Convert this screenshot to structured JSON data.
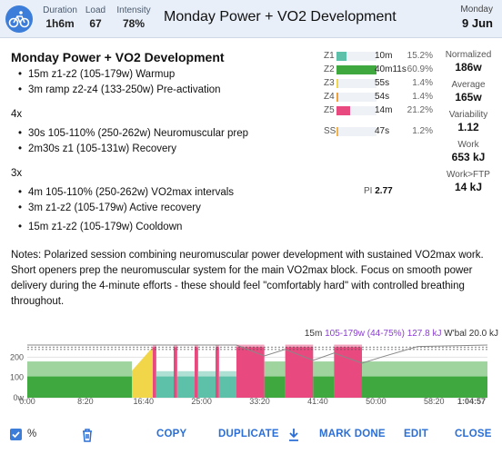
{
  "header": {
    "duration_label": "Duration",
    "duration_value": "1h6m",
    "load_label": "Load",
    "load_value": "67",
    "intensity_label": "Intensity",
    "intensity_value": "78%",
    "title": "Monday Power + VO2 Development",
    "day": "Monday",
    "date": "9 Jun"
  },
  "workout": {
    "title": "Monday Power + VO2 Development",
    "warmup": [
      "15m z1-z2 (105-179w) Warmup",
      "3m ramp z2-z4 (133-250w) Pre-activation"
    ],
    "set1_reps": "4x",
    "set1": [
      "30s 105-110% (250-262w) Neuromuscular prep",
      "2m30s z1 (105-131w) Recovery"
    ],
    "set2_reps": "3x",
    "set2": [
      "4m 105-110% (250-262w) VO2max intervals",
      "3m z1-z2 (105-179w) Active recovery"
    ],
    "cooldown": [
      "15m z1-z2 (105-179w) Cooldown"
    ]
  },
  "zones": [
    {
      "name": "Z1",
      "time": "10m",
      "pct": "15.2%",
      "fraction": 0.152,
      "color": "#5cc1a8"
    },
    {
      "name": "Z2",
      "time": "40m11s",
      "pct": "60.9%",
      "fraction": 0.609,
      "color": "#3fa83f"
    },
    {
      "name": "Z3",
      "time": "55s",
      "pct": "1.4%",
      "fraction": 0.014,
      "color": "#f2d64a"
    },
    {
      "name": "Z4",
      "time": "54s",
      "pct": "1.4%",
      "fraction": 0.014,
      "color": "#f0a23a"
    },
    {
      "name": "Z5",
      "time": "14m",
      "pct": "21.2%",
      "fraction": 0.212,
      "color": "#e84a7f"
    },
    {
      "name": "SS",
      "time": "47s",
      "pct": "1.2%",
      "fraction": 0.012,
      "color": "#f2b34a"
    }
  ],
  "pi_label": "PI",
  "pi_value": "2.77",
  "metrics": [
    {
      "label": "Normalized",
      "value": "186w"
    },
    {
      "label": "Average",
      "value": "165w"
    },
    {
      "label": "Variability",
      "value": "1.12"
    },
    {
      "label": "Work",
      "value": "653 kJ"
    },
    {
      "label": "Work>FTP",
      "value": "14 kJ"
    }
  ],
  "notes": "Notes: Polarized session combining neuromuscular power development with sustained VO2max work. Short openers prep the neuromuscular system for the main VO2max block. Focus on smooth power delivery during the 4-minute efforts - these should feel \"comfortably hard\" with controlled breathing throughout.",
  "chart_info": {
    "duration": "15m",
    "range": "105-179w (44-75%)",
    "work": "127.8 kJ",
    "wbal": "W'bal 20.0 kJ"
  },
  "chart_data": {
    "type": "area",
    "xlabel": "",
    "ylabel": "",
    "ylim": [
      0,
      260
    ],
    "y_ticks": [
      "0w",
      "100",
      "200"
    ],
    "x_ticks": [
      "0:00",
      "8:20",
      "16:40",
      "25:00",
      "33:20",
      "41:40",
      "50:00",
      "58:20",
      "1:04:57"
    ],
    "segments": [
      {
        "start_min": 0,
        "dur_min": 15,
        "low_w": 105,
        "high_w": 179,
        "zone": "Z2",
        "color": "#3fa83f"
      },
      {
        "start_min": 15,
        "dur_min": 3,
        "low_w": 133,
        "high_w": 250,
        "zone": "Z3",
        "color": "#f2d64a",
        "ramp": true
      },
      {
        "start_min": 18,
        "dur_min": 0.5,
        "low_w": 250,
        "high_w": 262,
        "zone": "Z5",
        "color": "#e84a7f"
      },
      {
        "start_min": 18.5,
        "dur_min": 2.5,
        "low_w": 105,
        "high_w": 131,
        "zone": "Z1",
        "color": "#5cc1a8"
      },
      {
        "start_min": 21,
        "dur_min": 0.5,
        "low_w": 250,
        "high_w": 262,
        "zone": "Z5",
        "color": "#e84a7f"
      },
      {
        "start_min": 21.5,
        "dur_min": 2.5,
        "low_w": 105,
        "high_w": 131,
        "zone": "Z1",
        "color": "#5cc1a8"
      },
      {
        "start_min": 24,
        "dur_min": 0.5,
        "low_w": 250,
        "high_w": 262,
        "zone": "Z5",
        "color": "#e84a7f"
      },
      {
        "start_min": 24.5,
        "dur_min": 2.5,
        "low_w": 105,
        "high_w": 131,
        "zone": "Z1",
        "color": "#5cc1a8"
      },
      {
        "start_min": 27,
        "dur_min": 0.5,
        "low_w": 250,
        "high_w": 262,
        "zone": "Z5",
        "color": "#e84a7f"
      },
      {
        "start_min": 27.5,
        "dur_min": 2.5,
        "low_w": 105,
        "high_w": 131,
        "zone": "Z1",
        "color": "#5cc1a8"
      },
      {
        "start_min": 30,
        "dur_min": 4,
        "low_w": 250,
        "high_w": 262,
        "zone": "Z5",
        "color": "#e84a7f"
      },
      {
        "start_min": 34,
        "dur_min": 3,
        "low_w": 105,
        "high_w": 179,
        "zone": "Z2",
        "color": "#3fa83f"
      },
      {
        "start_min": 37,
        "dur_min": 4,
        "low_w": 250,
        "high_w": 262,
        "zone": "Z5",
        "color": "#e84a7f"
      },
      {
        "start_min": 41,
        "dur_min": 3,
        "low_w": 105,
        "high_w": 179,
        "zone": "Z2",
        "color": "#3fa83f"
      },
      {
        "start_min": 44,
        "dur_min": 4,
        "low_w": 250,
        "high_w": 262,
        "zone": "Z5",
        "color": "#e84a7f"
      },
      {
        "start_min": 48,
        "dur_min": 3,
        "low_w": 105,
        "high_w": 179,
        "zone": "Z2",
        "color": "#3fa83f"
      },
      {
        "start_min": 51,
        "dur_min": 15,
        "low_w": 105,
        "high_w": 179,
        "zone": "Z2",
        "color": "#3fa83f"
      }
    ],
    "ftp_lines_w": [
      238,
      250
    ],
    "wbal_curve": [
      [
        0,
        20.0
      ],
      [
        18,
        20.0
      ],
      [
        30,
        20.0
      ],
      [
        34,
        12.5
      ],
      [
        37,
        17.0
      ],
      [
        41,
        9.5
      ],
      [
        44,
        14.5
      ],
      [
        48,
        7.5
      ],
      [
        51,
        12.0
      ],
      [
        56,
        19.0
      ],
      [
        66,
        20.0
      ]
    ]
  },
  "toolbar": {
    "percent_label": "%",
    "copy": "COPY",
    "duplicate": "DUPLICATE",
    "mark_done": "MARK DONE",
    "edit": "EDIT",
    "close": "CLOSE"
  }
}
